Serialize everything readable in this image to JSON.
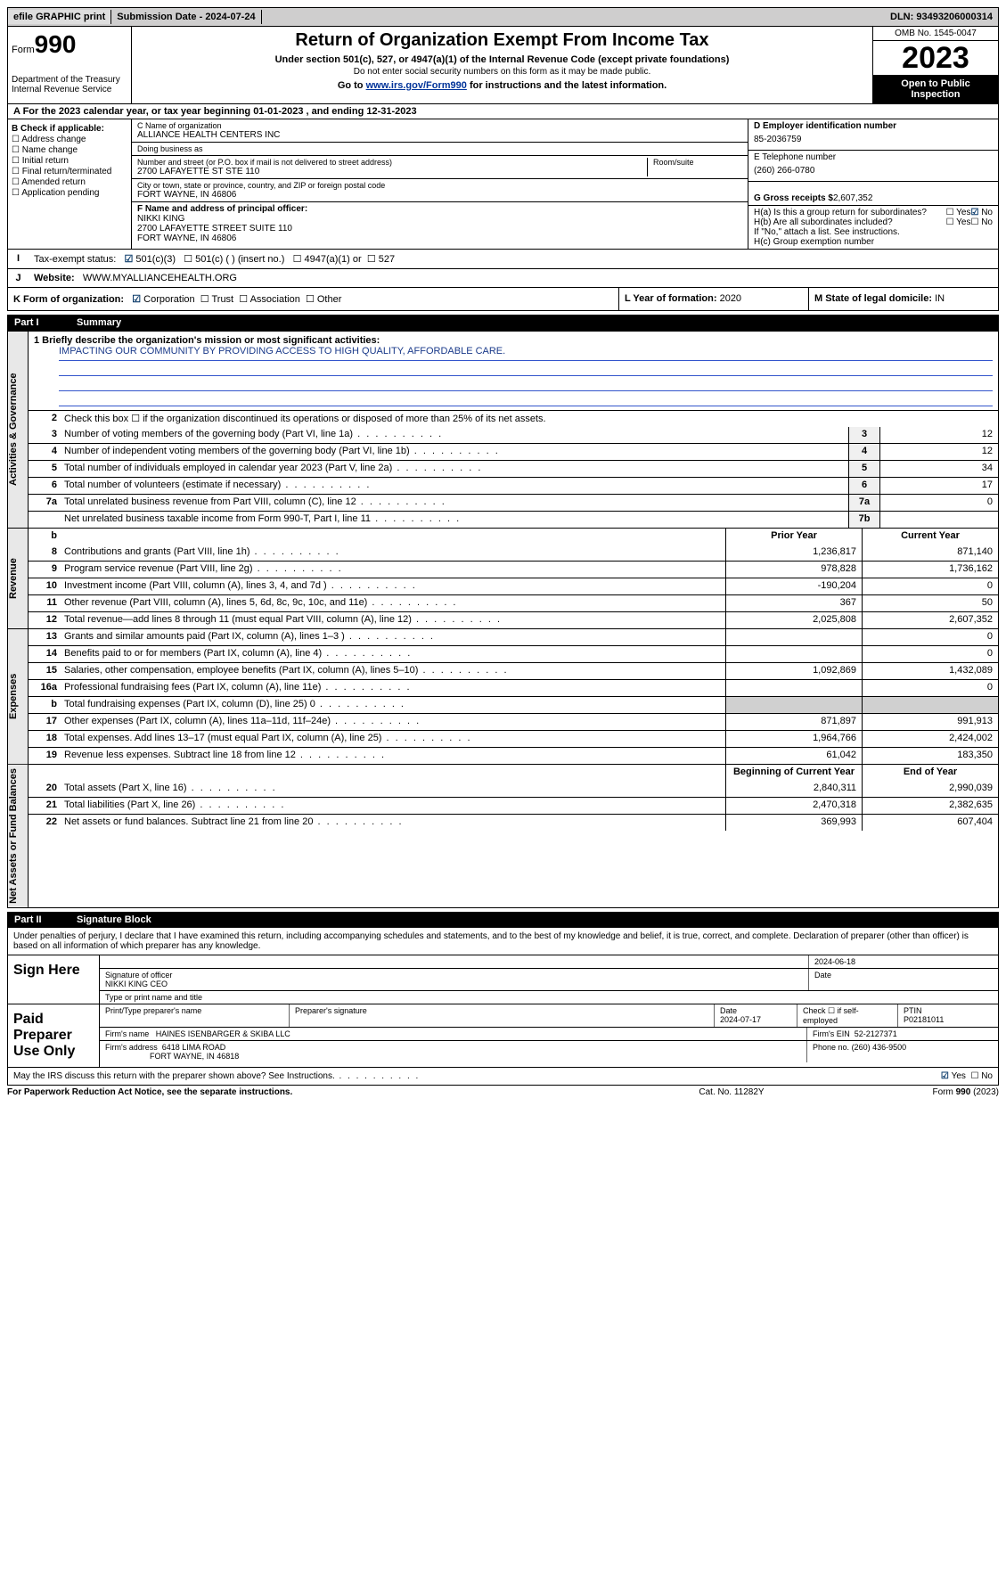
{
  "topbar": {
    "efile": "efile GRAPHIC print",
    "submission": "Submission Date - 2024-07-24",
    "dln": "DLN: 93493206000314"
  },
  "header": {
    "form_label": "Form",
    "form_num": "990",
    "dept": "Department of the Treasury Internal Revenue Service",
    "title": "Return of Organization Exempt From Income Tax",
    "sub1": "Under section 501(c), 527, or 4947(a)(1) of the Internal Revenue Code (except private foundations)",
    "sub2": "Do not enter social security numbers on this form as it may be made public.",
    "sub3_pre": "Go to ",
    "sub3_link": "www.irs.gov/Form990",
    "sub3_post": " for instructions and the latest information.",
    "omb": "OMB No. 1545-0047",
    "year": "2023",
    "open": "Open to Public Inspection"
  },
  "line_a": "A For the 2023 calendar year, or tax year beginning 01-01-2023    , and ending 12-31-2023",
  "box_b": {
    "title": "B Check if applicable:",
    "items": [
      "Address change",
      "Name change",
      "Initial return",
      "Final return/terminated",
      "Amended return",
      "Application pending"
    ]
  },
  "box_c": {
    "name_lbl": "C Name of organization",
    "name": "ALLIANCE HEALTH CENTERS INC",
    "dba_lbl": "Doing business as",
    "dba": "",
    "addr_lbl": "Number and street (or P.O. box if mail is not delivered to street address)",
    "room_lbl": "Room/suite",
    "addr": "2700 LAFAYETTE ST STE 110",
    "city_lbl": "City or town, state or province, country, and ZIP or foreign postal code",
    "city": "FORT WAYNE, IN  46806",
    "officer_lbl": "F  Name and address of principal officer:",
    "officer_name": "NIKKI KING",
    "officer_addr1": "2700 LAFAYETTE STREET SUITE 110",
    "officer_addr2": "FORT WAYNE, IN  46806"
  },
  "box_d": {
    "ein_lbl": "D Employer identification number",
    "ein": "85-2036759",
    "tel_lbl": "E Telephone number",
    "tel": "(260) 266-0780",
    "gross_lbl": "G Gross receipts $",
    "gross": "2,607,352",
    "ha_lbl": "H(a)  Is this a group return for subordinates?",
    "hb_lbl": "H(b)  Are all subordinates included?",
    "hb_note": "If \"No,\" attach a list. See instructions.",
    "hc_lbl": "H(c)  Group exemption number",
    "yes": "Yes",
    "no": "No"
  },
  "tax_status": {
    "lbl": "Tax-exempt status:",
    "o1": "501(c)(3)",
    "o2": "501(c) (  ) (insert no.)",
    "o3": "4947(a)(1) or",
    "o4": "527"
  },
  "website": {
    "lbl": "Website:",
    "val": "WWW.MYALLIANCEHEALTH.ORG"
  },
  "form_org": {
    "lbl": "K Form of organization:",
    "o1": "Corporation",
    "o2": "Trust",
    "o3": "Association",
    "o4": "Other",
    "year_lbl": "L Year of formation:",
    "year": "2020",
    "state_lbl": "M State of legal domicile:",
    "state": "IN"
  },
  "part1": {
    "title": "Part I",
    "name": "Summary",
    "mission_lbl": "1   Briefly describe the organization's mission or most significant activities:",
    "mission": "IMPACTING OUR COMMUNITY BY PROVIDING ACCESS TO HIGH QUALITY, AFFORDABLE CARE.",
    "line2": "Check this box ☐  if the organization discontinued its operations or disposed of more than 25% of its net assets.",
    "rows_gov": [
      {
        "n": "3",
        "t": "Number of voting members of the governing body (Part VI, line 1a)",
        "bn": "3",
        "v": "12"
      },
      {
        "n": "4",
        "t": "Number of independent voting members of the governing body (Part VI, line 1b)",
        "bn": "4",
        "v": "12"
      },
      {
        "n": "5",
        "t": "Total number of individuals employed in calendar year 2023 (Part V, line 2a)",
        "bn": "5",
        "v": "34"
      },
      {
        "n": "6",
        "t": "Total number of volunteers (estimate if necessary)",
        "bn": "6",
        "v": "17"
      },
      {
        "n": "7a",
        "t": "Total unrelated business revenue from Part VIII, column (C), line 12",
        "bn": "7a",
        "v": "0"
      },
      {
        "n": "",
        "t": "Net unrelated business taxable income from Form 990-T, Part I, line 11",
        "bn": "7b",
        "v": ""
      }
    ],
    "prior_hdr": "Prior Year",
    "curr_hdr": "Current Year",
    "rows_rev": [
      {
        "n": "8",
        "t": "Contributions and grants (Part VIII, line 1h)",
        "p": "1,236,817",
        "c": "871,140"
      },
      {
        "n": "9",
        "t": "Program service revenue (Part VIII, line 2g)",
        "p": "978,828",
        "c": "1,736,162"
      },
      {
        "n": "10",
        "t": "Investment income (Part VIII, column (A), lines 3, 4, and 7d )",
        "p": "-190,204",
        "c": "0"
      },
      {
        "n": "11",
        "t": "Other revenue (Part VIII, column (A), lines 5, 6d, 8c, 9c, 10c, and 11e)",
        "p": "367",
        "c": "50"
      },
      {
        "n": "12",
        "t": "Total revenue—add lines 8 through 11 (must equal Part VIII, column (A), line 12)",
        "p": "2,025,808",
        "c": "2,607,352"
      }
    ],
    "rows_exp": [
      {
        "n": "13",
        "t": "Grants and similar amounts paid (Part IX, column (A), lines 1–3 )",
        "p": "",
        "c": "0"
      },
      {
        "n": "14",
        "t": "Benefits paid to or for members (Part IX, column (A), line 4)",
        "p": "",
        "c": "0"
      },
      {
        "n": "15",
        "t": "Salaries, other compensation, employee benefits (Part IX, column (A), lines 5–10)",
        "p": "1,092,869",
        "c": "1,432,089"
      },
      {
        "n": "16a",
        "t": "Professional fundraising fees (Part IX, column (A), line 11e)",
        "p": "",
        "c": "0"
      },
      {
        "n": "b",
        "t": "Total fundraising expenses (Part IX, column (D), line 25) 0",
        "p": "shade",
        "c": "shade"
      },
      {
        "n": "17",
        "t": "Other expenses (Part IX, column (A), lines 11a–11d, 11f–24e)",
        "p": "871,897",
        "c": "991,913"
      },
      {
        "n": "18",
        "t": "Total expenses. Add lines 13–17 (must equal Part IX, column (A), line 25)",
        "p": "1,964,766",
        "c": "2,424,002"
      },
      {
        "n": "19",
        "t": "Revenue less expenses. Subtract line 18 from line 12",
        "p": "61,042",
        "c": "183,350"
      }
    ],
    "begin_hdr": "Beginning of Current Year",
    "end_hdr": "End of Year",
    "rows_net": [
      {
        "n": "20",
        "t": "Total assets (Part X, line 16)",
        "p": "2,840,311",
        "c": "2,990,039"
      },
      {
        "n": "21",
        "t": "Total liabilities (Part X, line 26)",
        "p": "2,470,318",
        "c": "2,382,635"
      },
      {
        "n": "22",
        "t": "Net assets or fund balances. Subtract line 21 from line 20",
        "p": "369,993",
        "c": "607,404"
      }
    ],
    "vtabs": {
      "gov": "Activities & Governance",
      "rev": "Revenue",
      "exp": "Expenses",
      "net": "Net Assets or Fund Balances"
    }
  },
  "part2": {
    "title": "Part II",
    "name": "Signature Block",
    "declare": "Under penalties of perjury, I declare that I have examined this return, including accompanying schedules and statements, and to the best of my knowledge and belief, it is true, correct, and complete. Declaration of preparer (other than officer) is based on all information of which preparer has any knowledge.",
    "sign_here": "Sign Here",
    "sig_officer_lbl": "Signature of officer",
    "sig_officer": "NIKKI KING CEO",
    "sig_date": "2024-06-18",
    "date_lbl": "Date",
    "name_title_lbl": "Type or print name and title",
    "paid": "Paid Preparer Use Only",
    "prep_name_lbl": "Print/Type preparer's name",
    "prep_sig_lbl": "Preparer's signature",
    "prep_date_lbl": "Date",
    "prep_date": "2024-07-17",
    "self_emp": "Check ☐ if self-employed",
    "ptin_lbl": "PTIN",
    "ptin": "P02181011",
    "firm_name_lbl": "Firm's name",
    "firm_name": "HAINES ISENBARGER & SKIBA LLC",
    "firm_ein_lbl": "Firm's EIN",
    "firm_ein": "52-2127371",
    "firm_addr_lbl": "Firm's address",
    "firm_addr1": "6418 LIMA ROAD",
    "firm_addr2": "FORT WAYNE, IN  46818",
    "phone_lbl": "Phone no.",
    "phone": "(260) 436-9500",
    "discuss": "May the IRS discuss this return with the preparer shown above? See Instructions."
  },
  "footer": {
    "left": "For Paperwork Reduction Act Notice, see the separate instructions.",
    "center": "Cat. No. 11282Y",
    "right_pre": "Form ",
    "right_b": "990",
    "right_post": " (2023)"
  }
}
